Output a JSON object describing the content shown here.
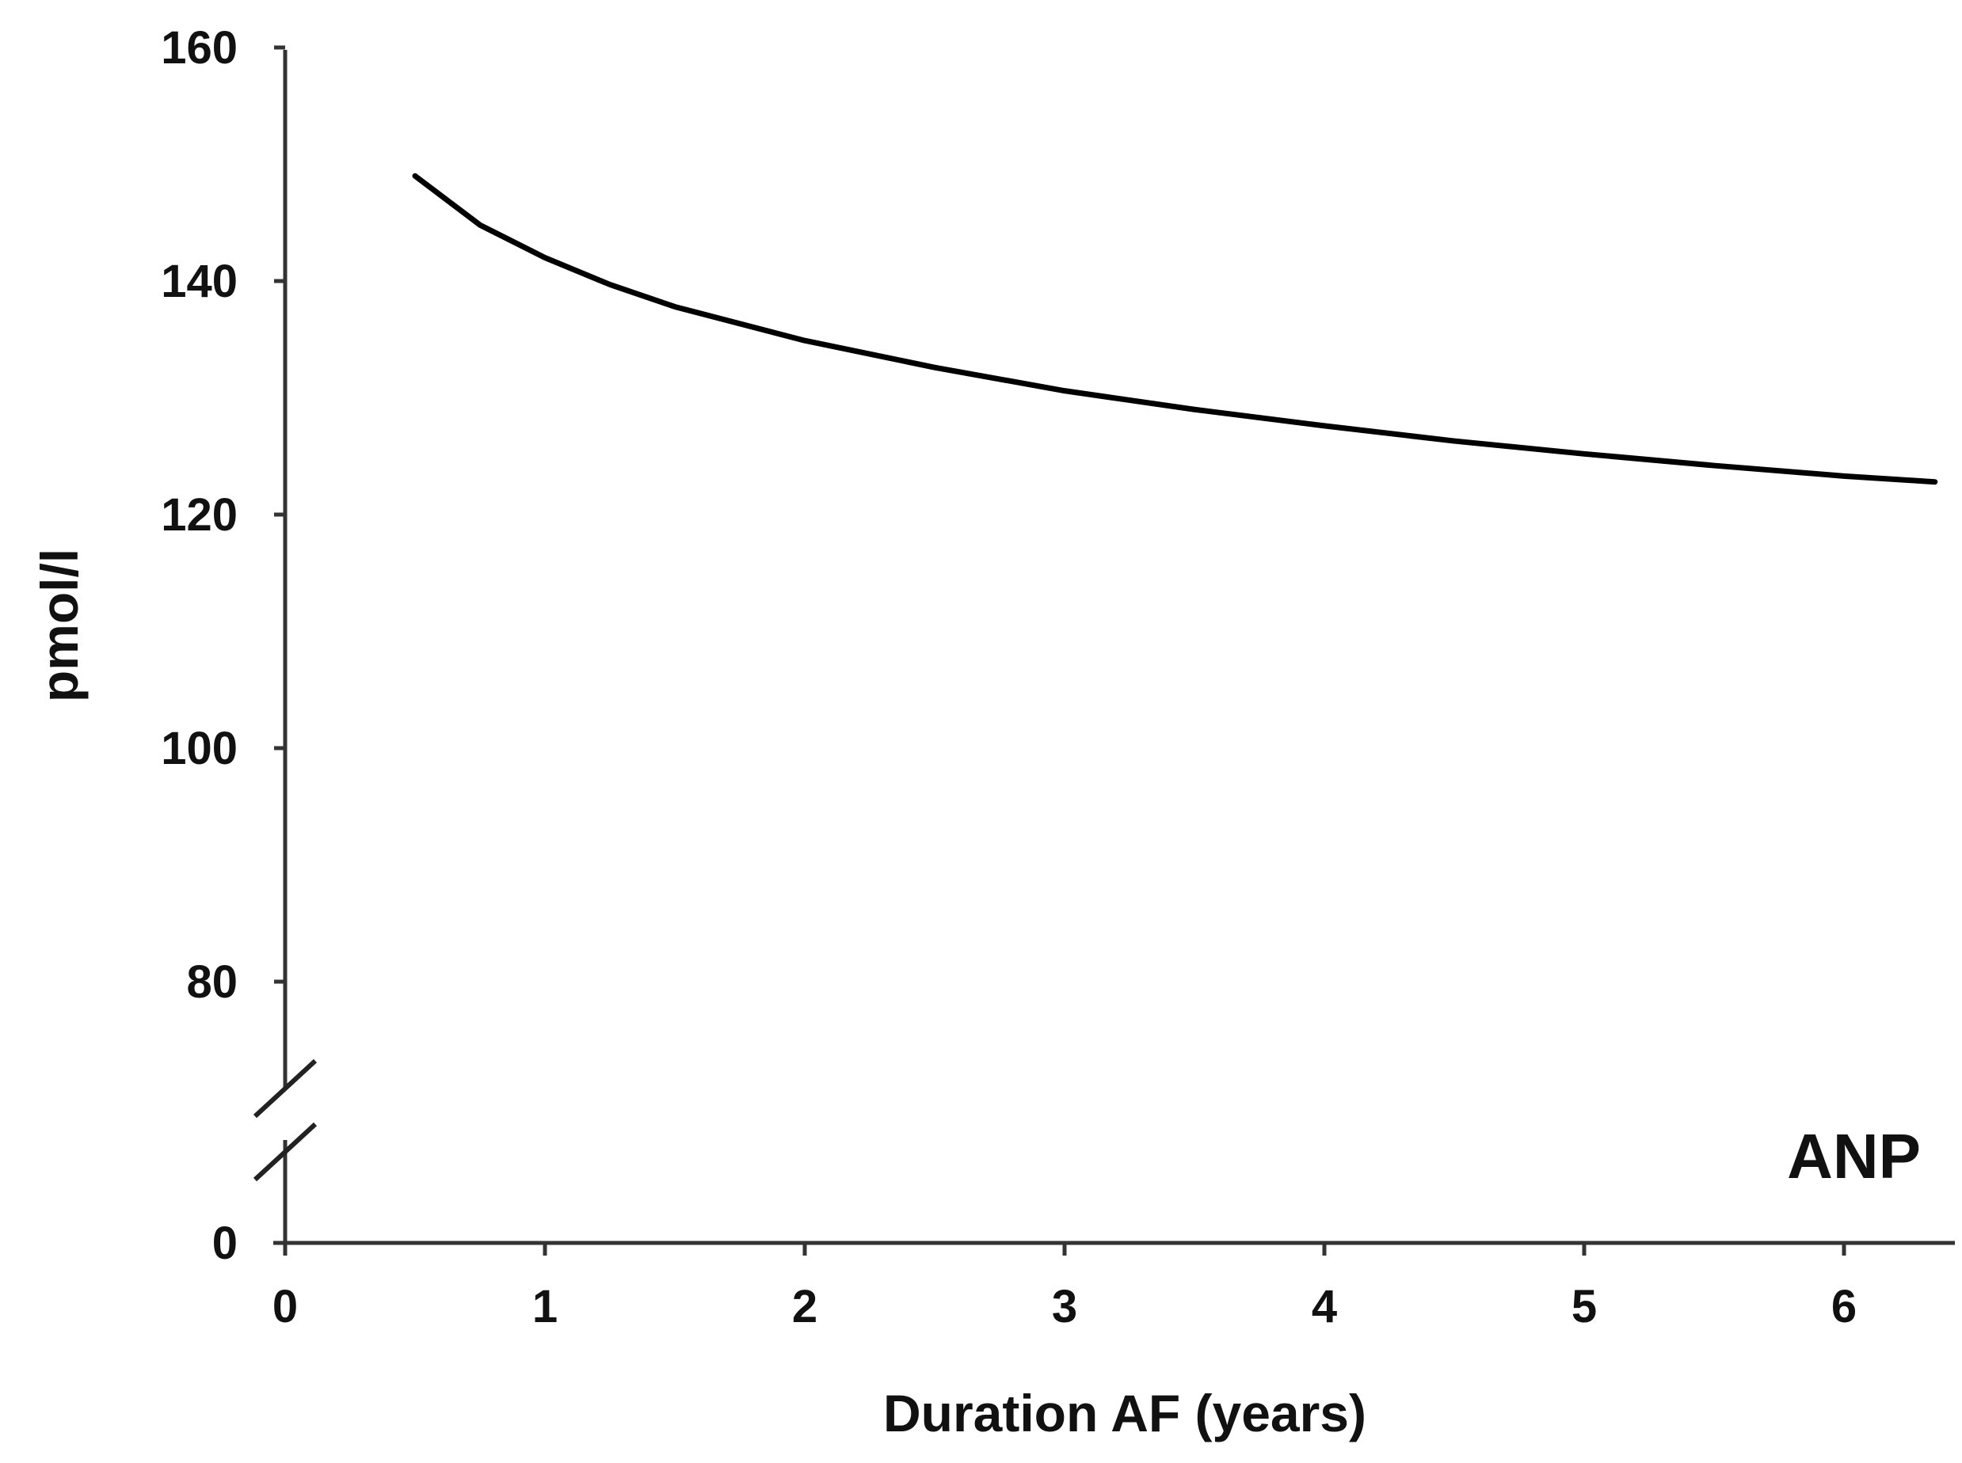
{
  "chart_data": {
    "type": "line",
    "xlabel": "Duration AF (years)",
    "ylabel": "pmol/l",
    "annotation": "ANP",
    "x_ticks": [
      0,
      1,
      2,
      3,
      4,
      5,
      6
    ],
    "y_ticks_upper": [
      80,
      100,
      120,
      140,
      160
    ],
    "y_tick_zero": 0,
    "xlim": [
      0,
      6.5
    ],
    "ylim": [
      72,
      160
    ],
    "axis_break": true,
    "grid": false,
    "series": [
      {
        "x": [
          0.5,
          0.75,
          1.0,
          1.25,
          1.5,
          2.0,
          2.5,
          3.0,
          3.5,
          4.0,
          4.5,
          5.0,
          5.5,
          6.0,
          6.35
        ],
        "y": [
          149,
          144.8,
          142,
          139.7,
          137.8,
          134.9,
          132.6,
          130.6,
          129.0,
          127.6,
          126.3,
          125.2,
          124.2,
          123.3,
          122.8
        ],
        "color": "#000000"
      }
    ]
  }
}
